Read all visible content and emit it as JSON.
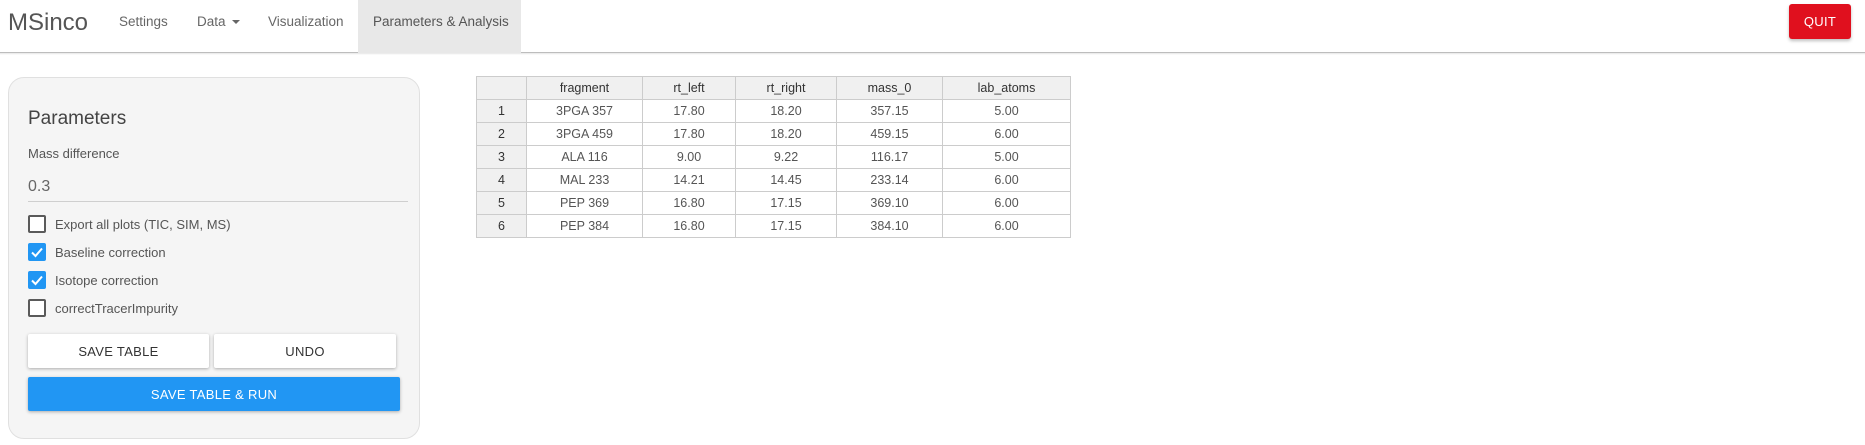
{
  "navbar": {
    "brand": "MSinco",
    "items": [
      {
        "label": "Settings"
      },
      {
        "label": "Data"
      },
      {
        "label": "Visualization"
      },
      {
        "label": "Parameters & Analysis"
      }
    ],
    "quit_label": "QUIT",
    "quit_color": "#e0101e"
  },
  "parameters": {
    "title": "Parameters",
    "mass_difference_label": "Mass difference",
    "mass_difference_value": "0.3",
    "checkboxes": [
      {
        "label": "Export all plots (TIC, SIM, MS)",
        "checked": false
      },
      {
        "label": "Baseline correction",
        "checked": true
      },
      {
        "label": "Isotope correction",
        "checked": true
      },
      {
        "label": "correctTracerImpurity",
        "checked": false
      }
    ],
    "save_table_label": "SAVE TABLE",
    "undo_label": "UNDO",
    "save_run_label": "SAVE TABLE & RUN",
    "accent_color": "#2196f3"
  },
  "table": {
    "columns": [
      "",
      "fragment",
      "rt_left",
      "rt_right",
      "mass_0",
      "lab_atoms"
    ],
    "rows": [
      [
        "1",
        "3PGA 357",
        "17.80",
        "18.20",
        "357.15",
        "5.00"
      ],
      [
        "2",
        "3PGA 459",
        "17.80",
        "18.20",
        "459.15",
        "6.00"
      ],
      [
        "3",
        "ALA 116",
        "9.00",
        "9.22",
        "116.17",
        "5.00"
      ],
      [
        "4",
        "MAL 233",
        "14.21",
        "14.45",
        "233.14",
        "6.00"
      ],
      [
        "5",
        "PEP 369",
        "16.80",
        "17.15",
        "369.10",
        "6.00"
      ],
      [
        "6",
        "PEP 384",
        "16.80",
        "17.15",
        "384.10",
        "6.00"
      ]
    ]
  }
}
